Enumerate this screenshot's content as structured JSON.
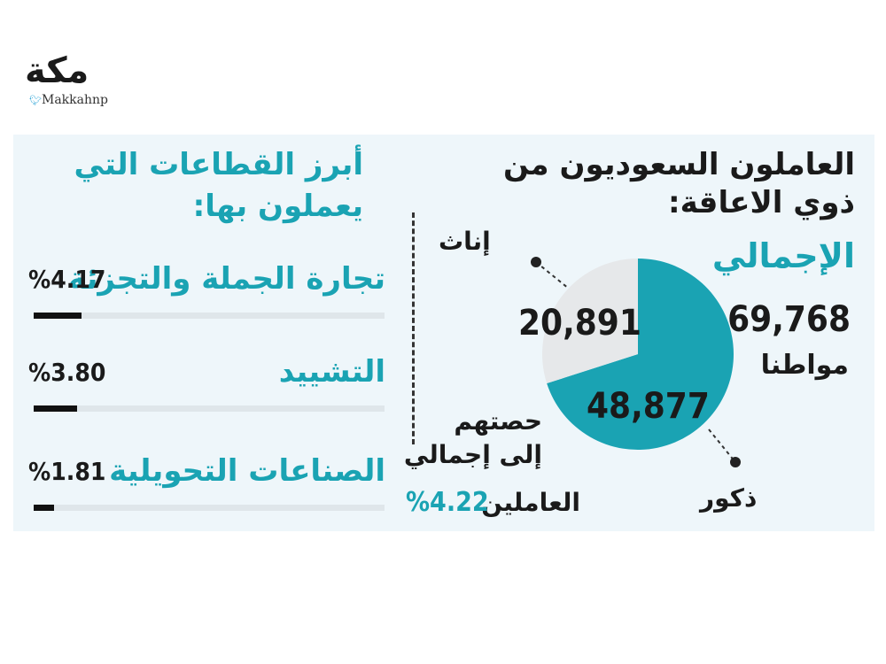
{
  "logo": {
    "name": "مكة",
    "handle": "Makkahnp"
  },
  "left_section": {
    "title_line1": "أبرز القطاعات التي",
    "title_line2": "يعملون بها:"
  },
  "right_section": {
    "title_line1": "العاملون السعوديون من",
    "title_line2": "ذوي الاعاقة:",
    "total_label": "الإجمالي",
    "total_value": "69,768",
    "total_unit": "مواطنا",
    "female_label": "إناث",
    "male_label": "ذكور",
    "share_line1": "حصتهم",
    "share_line2": "إلى إجمالي",
    "share_line3": "العاملين",
    "share_value": "%4.22"
  },
  "colors": {
    "accent": "#1aa3b3",
    "pie_female": "#e6e8ea",
    "pie_male": "#1aa3b3",
    "panel_bg": "#eef6fa",
    "bar_fill": "#111111",
    "bar_track": "#dfe6ea"
  },
  "chart_data": [
    {
      "type": "pie",
      "title": "",
      "slices": [
        {
          "name": "ذكور",
          "value": 48877,
          "label": "48,877"
        },
        {
          "name": "إناث",
          "value": 20891,
          "label": "20,891"
        }
      ]
    },
    {
      "type": "bar",
      "orientation": "horizontal",
      "title": "",
      "categories": [
        "تجارة الجملة والتجزئة",
        "التشييد",
        "الصناعات التحويلية"
      ],
      "values": [
        4.17,
        3.8,
        1.81
      ],
      "value_labels": [
        "%4.17",
        "%3.80",
        "%1.81"
      ]
    }
  ]
}
